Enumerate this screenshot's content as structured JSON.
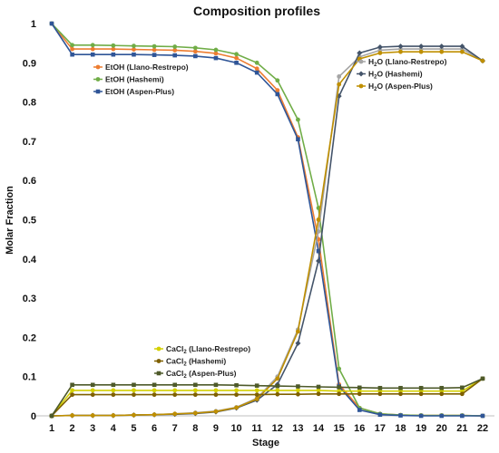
{
  "chart_data": {
    "type": "line",
    "title": "Composition profiles",
    "xlabel": "Stage",
    "ylabel": "Molar Fraction",
    "x": [
      1,
      2,
      3,
      4,
      5,
      6,
      7,
      8,
      9,
      10,
      11,
      12,
      13,
      14,
      15,
      16,
      17,
      18,
      19,
      20,
      21,
      22
    ],
    "xlim": [
      1,
      22
    ],
    "ylim": [
      0,
      1
    ],
    "yticks": [
      "0",
      "0.1",
      "0.2",
      "0.3",
      "0.4",
      "0.5",
      "0.6",
      "0.7",
      "0.8",
      "0.9",
      "1"
    ],
    "xticks": [
      "1",
      "2",
      "3",
      "4",
      "5",
      "6",
      "7",
      "8",
      "9",
      "10",
      "11",
      "12",
      "13",
      "14",
      "15",
      "16",
      "17",
      "18",
      "19",
      "20",
      "21",
      "22"
    ],
    "grid": false,
    "series": [
      {
        "name": "EtOH (Llano-Restrepo)",
        "color": "#ED7D31",
        "marker": "circle",
        "legend": "etoh",
        "values": [
          1.0,
          0.935,
          0.935,
          0.935,
          0.934,
          0.933,
          0.932,
          0.929,
          0.924,
          0.912,
          0.885,
          0.83,
          0.71,
          0.45,
          0.08,
          0.02,
          0.005,
          0.002,
          0.001,
          0.001,
          0.001,
          0.0
        ]
      },
      {
        "name": "EtOH (Hashemi)",
        "color": "#70AD47",
        "marker": "circle",
        "legend": "etoh",
        "values": [
          1.0,
          0.945,
          0.945,
          0.944,
          0.943,
          0.942,
          0.941,
          0.938,
          0.933,
          0.922,
          0.9,
          0.855,
          0.755,
          0.53,
          0.12,
          0.02,
          0.005,
          0.002,
          0.001,
          0.001,
          0.001,
          0.0
        ]
      },
      {
        "name": "EtOH (Aspen-Plus)",
        "color": "#2F5597",
        "marker": "square",
        "legend": "etoh",
        "values": [
          1.0,
          0.921,
          0.921,
          0.921,
          0.921,
          0.92,
          0.919,
          0.917,
          0.912,
          0.9,
          0.875,
          0.82,
          0.705,
          0.42,
          0.075,
          0.015,
          0.003,
          0.001,
          0.0,
          0.0,
          0.0,
          0.0
        ]
      },
      {
        "name": "H2O (Llano-Restrepo)",
        "color": "#A5A5A5",
        "marker": "circle",
        "legend": "h2o",
        "values": [
          0.0,
          0.001,
          0.001,
          0.001,
          0.002,
          0.003,
          0.005,
          0.008,
          0.012,
          0.022,
          0.045,
          0.1,
          0.22,
          0.47,
          0.865,
          0.915,
          0.932,
          0.935,
          0.935,
          0.935,
          0.935,
          0.905
        ]
      },
      {
        "name": "H2O (Hashemi)",
        "color": "#44546A",
        "marker": "diamond",
        "legend": "h2o",
        "values": [
          0.0,
          0.001,
          0.001,
          0.001,
          0.002,
          0.003,
          0.004,
          0.006,
          0.01,
          0.02,
          0.04,
          0.08,
          0.185,
          0.395,
          0.815,
          0.925,
          0.94,
          0.942,
          0.942,
          0.942,
          0.942,
          0.905
        ]
      },
      {
        "name": "H2O (Aspen-Plus)",
        "color": "#BF8F00",
        "marker": "circle",
        "legend": "h2o",
        "values": [
          0.0,
          0.001,
          0.001,
          0.001,
          0.002,
          0.003,
          0.005,
          0.007,
          0.011,
          0.021,
          0.043,
          0.095,
          0.215,
          0.5,
          0.845,
          0.91,
          0.925,
          0.928,
          0.928,
          0.928,
          0.928,
          0.905
        ]
      },
      {
        "name": "CaCl2 (Llano-Restrepo)",
        "color": "#D4D000",
        "marker": "circle",
        "legend": "cacl2",
        "values": [
          0.0,
          0.065,
          0.065,
          0.065,
          0.065,
          0.065,
          0.065,
          0.065,
          0.065,
          0.065,
          0.065,
          0.065,
          0.065,
          0.065,
          0.063,
          0.063,
          0.063,
          0.063,
          0.063,
          0.063,
          0.063,
          0.095
        ]
      },
      {
        "name": "CaCl2 (Hashemi)",
        "color": "#7F6000",
        "marker": "circle",
        "legend": "cacl2",
        "values": [
          0.0,
          0.054,
          0.054,
          0.054,
          0.054,
          0.054,
          0.054,
          0.054,
          0.054,
          0.054,
          0.054,
          0.055,
          0.055,
          0.056,
          0.056,
          0.056,
          0.056,
          0.056,
          0.056,
          0.056,
          0.056,
          0.095
        ]
      },
      {
        "name": "CaCl2 (Aspen-Plus)",
        "color": "#4E5A2A",
        "marker": "square",
        "legend": "cacl2",
        "values": [
          0.0,
          0.079,
          0.079,
          0.079,
          0.079,
          0.079,
          0.079,
          0.079,
          0.079,
          0.078,
          0.077,
          0.076,
          0.075,
          0.074,
          0.073,
          0.072,
          0.071,
          0.071,
          0.071,
          0.071,
          0.072,
          0.095
        ]
      }
    ],
    "legends": {
      "etoh": {
        "placement": "upper-left",
        "entries": [
          "EtOH (Llano-Restrepo)",
          "EtOH (Hashemi)",
          "EtOH (Aspen-Plus)"
        ]
      },
      "h2o": {
        "placement": "upper-right",
        "entries": [
          {
            "pre": "H",
            "sub": "2",
            "post": "O (Llano-Restrepo)"
          },
          {
            "pre": "H",
            "sub": "2",
            "post": "O (Hashemi)"
          },
          {
            "pre": "H",
            "sub": "2",
            "post": "O (Aspen-Plus)"
          }
        ]
      },
      "cacl2": {
        "placement": "lower-center",
        "entries": [
          {
            "pre": "CaCl",
            "sub": "2",
            "post": " (Llano-Restrepo)"
          },
          {
            "pre": "CaCl",
            "sub": "2",
            "post": " (Hashemi)"
          },
          {
            "pre": "CaCl",
            "sub": "2",
            "post": " (Aspen-Plus)"
          }
        ]
      }
    }
  }
}
